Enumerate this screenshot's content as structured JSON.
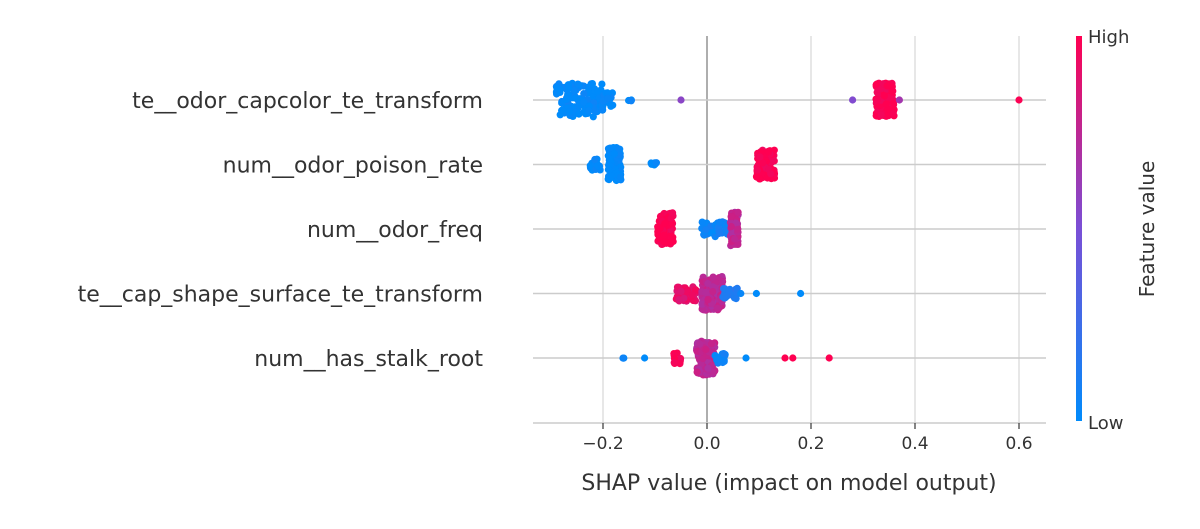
{
  "chart_data": {
    "type": "scatter",
    "subtype": "shap-beeswarm",
    "title": "",
    "xlabel": "SHAP value (impact on model output)",
    "ylabel": "",
    "xlim": [
      -0.33,
      0.645
    ],
    "x_ticks": [
      -0.2,
      0.0,
      0.2,
      0.4,
      0.6
    ],
    "x_tick_labels": [
      "−0.2",
      "0.0",
      "0.2",
      "0.4",
      "0.6"
    ],
    "grid": "vertical",
    "zero_line": 0.0,
    "features": [
      "te__odor_capcolor_te_transform",
      "num__odor_poison_rate",
      "num__odor_freq",
      "te__cap_shape_surface_te_transform",
      "num__has_stalk_root"
    ],
    "colorbar": {
      "label": "Feature value",
      "high_label": "High",
      "low_label": "Low",
      "low_color": "#008bfb",
      "mid_color": "#7a4fd6",
      "high_color": "#ff0051"
    },
    "points": [
      {
        "feature": 0,
        "clusters": [
          {
            "x": [
              -0.29,
              -0.2
            ],
            "n": 130,
            "value": 0.0,
            "spread": 1.0
          },
          {
            "x": [
              -0.2,
              -0.18
            ],
            "n": 14,
            "value": 0.0,
            "spread": 0.5
          },
          {
            "x": [
              -0.155,
              -0.145
            ],
            "n": 3,
            "value": 0.0,
            "spread": 0.05
          },
          {
            "x": [
              -0.05,
              -0.05
            ],
            "n": 1,
            "value": 0.55,
            "spread": 0.0
          },
          {
            "x": [
              0.28,
              0.28
            ],
            "n": 1,
            "value": 0.55,
            "spread": 0.0
          },
          {
            "x": [
              0.325,
              0.36
            ],
            "n": 160,
            "value": 1.0,
            "spread": 1.0
          },
          {
            "x": [
              0.37,
              0.37
            ],
            "n": 1,
            "value": 0.6,
            "spread": 0.0
          },
          {
            "x": [
              0.6,
              0.6
            ],
            "n": 1,
            "value": 1.0,
            "spread": 0.0
          }
        ]
      },
      {
        "feature": 1,
        "clusters": [
          {
            "x": [
              -0.225,
              -0.205
            ],
            "n": 22,
            "value": 0.0,
            "spread": 0.35
          },
          {
            "x": [
              -0.19,
              -0.165
            ],
            "n": 90,
            "value": 0.0,
            "spread": 1.0
          },
          {
            "x": [
              -0.11,
              -0.09
            ],
            "n": 6,
            "value": 0.0,
            "spread": 0.15
          },
          {
            "x": [
              0.095,
              0.13
            ],
            "n": 120,
            "value": 1.0,
            "spread": 0.85
          }
        ]
      },
      {
        "feature": 2,
        "clusters": [
          {
            "x": [
              -0.095,
              -0.065
            ],
            "n": 110,
            "value": 1.0,
            "spread": 0.95
          },
          {
            "x": [
              -0.01,
              0.04
            ],
            "n": 50,
            "value": 0.05,
            "spread": 0.45
          },
          {
            "x": [
              0.045,
              0.06
            ],
            "n": 80,
            "value": 0.75,
            "spread": 1.0
          }
        ]
      },
      {
        "feature": 3,
        "clusters": [
          {
            "x": [
              -0.06,
              -0.02
            ],
            "n": 45,
            "value": 0.9,
            "spread": 0.45
          },
          {
            "x": [
              -0.01,
              0.03
            ],
            "n": 170,
            "value": 0.75,
            "spread": 1.0
          },
          {
            "x": [
              0.03,
              0.06
            ],
            "n": 25,
            "value": 0.15,
            "spread": 0.3
          },
          {
            "x": [
              0.065,
              0.065
            ],
            "n": 1,
            "value": 0.0,
            "spread": 0.0
          },
          {
            "x": [
              0.095,
              0.095
            ],
            "n": 1,
            "value": 0.0,
            "spread": 0.0
          },
          {
            "x": [
              0.18,
              0.18
            ],
            "n": 1,
            "value": 0.0,
            "spread": 0.0
          }
        ]
      },
      {
        "feature": 4,
        "clusters": [
          {
            "x": [
              -0.165,
              -0.16
            ],
            "n": 2,
            "value": 0.0,
            "spread": 0.05
          },
          {
            "x": [
              -0.12,
              -0.12
            ],
            "n": 1,
            "value": 0.0,
            "spread": 0.0
          },
          {
            "x": [
              -0.065,
              -0.05
            ],
            "n": 14,
            "value": 1.0,
            "spread": 0.35
          },
          {
            "x": [
              -0.02,
              0.015
            ],
            "n": 150,
            "value": 0.75,
            "spread": 1.0
          },
          {
            "x": [
              0.015,
              0.035
            ],
            "n": 20,
            "value": 0.05,
            "spread": 0.35
          },
          {
            "x": [
              0.075,
              0.075
            ],
            "n": 1,
            "value": 0.0,
            "spread": 0.0
          },
          {
            "x": [
              0.15,
              0.15
            ],
            "n": 1,
            "value": 1.0,
            "spread": 0.0
          },
          {
            "x": [
              0.165,
              0.165
            ],
            "n": 1,
            "value": 1.0,
            "spread": 0.0
          },
          {
            "x": [
              0.235,
              0.235
            ],
            "n": 1,
            "value": 1.0,
            "spread": 0.0
          }
        ]
      }
    ]
  }
}
